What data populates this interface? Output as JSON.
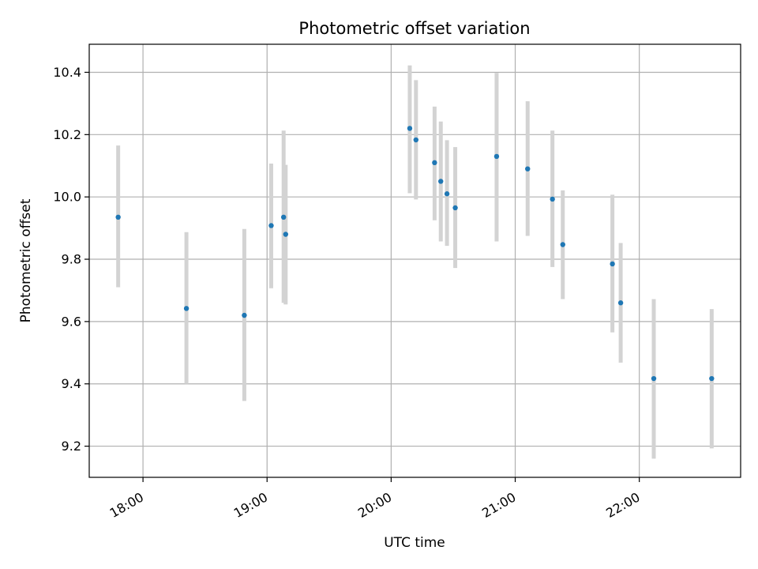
{
  "chart_data": {
    "type": "scatter",
    "title": "Photometric offset variation",
    "xlabel": "UTC time",
    "ylabel": "Photometric offset",
    "x_tick_labels": [
      "18:00",
      "19:00",
      "20:00",
      "21:00",
      "22:00"
    ],
    "y_tick_labels": [
      "9.2",
      "9.4",
      "9.6",
      "9.8",
      "10.0",
      "10.2",
      "10.4"
    ],
    "x_ticks": [
      "18:00",
      "19:00",
      "20:00",
      "21:00",
      "22:00"
    ],
    "y_ticks": [
      9.2,
      9.4,
      9.6,
      9.8,
      10.0,
      10.2,
      10.4
    ],
    "xlim": [
      "17:34",
      "22:49"
    ],
    "ylim": [
      9.1,
      10.49
    ],
    "grid": true,
    "colors": {
      "point": "#1f77b4",
      "errorbar": "#d3d3d3",
      "grid": "#b0b0b0"
    },
    "points": [
      {
        "x": "17:48",
        "y": 9.935,
        "yerr_low": 9.71,
        "yerr_high": 10.165
      },
      {
        "x": "18:21",
        "y": 9.642,
        "yerr_low": 9.4,
        "yerr_high": 9.887
      },
      {
        "x": "18:49",
        "y": 9.62,
        "yerr_low": 9.345,
        "yerr_high": 9.897
      },
      {
        "x": "19:02",
        "y": 9.908,
        "yerr_low": 9.707,
        "yerr_high": 10.107
      },
      {
        "x": "19:08",
        "y": 9.935,
        "yerr_low": 9.66,
        "yerr_high": 10.213
      },
      {
        "x": "19:09",
        "y": 9.88,
        "yerr_low": 9.655,
        "yerr_high": 10.103
      },
      {
        "x": "20:09",
        "y": 10.22,
        "yerr_low": 10.012,
        "yerr_high": 10.422
      },
      {
        "x": "20:12",
        "y": 10.183,
        "yerr_low": 9.992,
        "yerr_high": 10.375
      },
      {
        "x": "20:21",
        "y": 10.11,
        "yerr_low": 9.925,
        "yerr_high": 10.29
      },
      {
        "x": "20:24",
        "y": 10.05,
        "yerr_low": 9.857,
        "yerr_high": 10.242
      },
      {
        "x": "20:27",
        "y": 10.01,
        "yerr_low": 9.843,
        "yerr_high": 10.182
      },
      {
        "x": "20:31",
        "y": 9.965,
        "yerr_low": 9.772,
        "yerr_high": 10.16
      },
      {
        "x": "20:51",
        "y": 10.13,
        "yerr_low": 9.857,
        "yerr_high": 10.398
      },
      {
        "x": "21:06",
        "y": 10.09,
        "yerr_low": 9.875,
        "yerr_high": 10.307
      },
      {
        "x": "21:18",
        "y": 9.993,
        "yerr_low": 9.775,
        "yerr_high": 10.213
      },
      {
        "x": "21:23",
        "y": 9.847,
        "yerr_low": 9.672,
        "yerr_high": 10.021
      },
      {
        "x": "21:47",
        "y": 9.785,
        "yerr_low": 9.565,
        "yerr_high": 10.007
      },
      {
        "x": "21:51",
        "y": 9.66,
        "yerr_low": 9.468,
        "yerr_high": 9.852
      },
      {
        "x": "22:07",
        "y": 9.417,
        "yerr_low": 9.16,
        "yerr_high": 9.672
      },
      {
        "x": "22:35",
        "y": 9.417,
        "yerr_low": 9.193,
        "yerr_high": 9.64
      }
    ]
  }
}
